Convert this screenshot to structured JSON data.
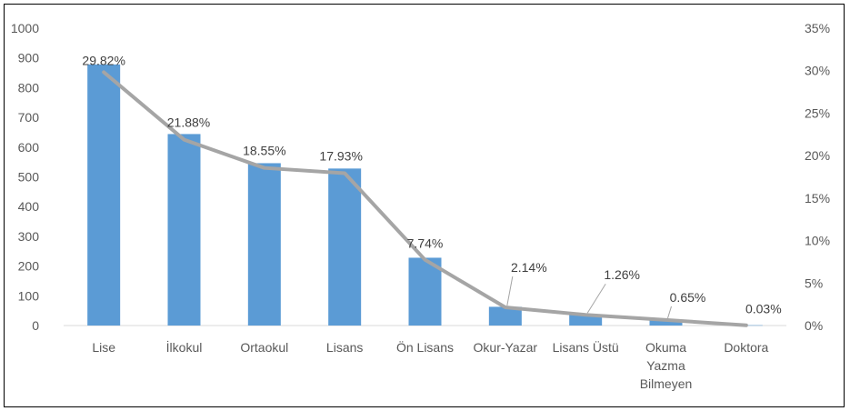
{
  "chart_data": {
    "type": "bar",
    "categories": [
      "Lise",
      "İlkokul",
      "Ortaokul",
      "Lisans",
      "Ön Lisans",
      "Okur-Yazar",
      "Lisans Üstü",
      "Okuma Yazma Bilmeyen",
      "Doktora"
    ],
    "category_lines": [
      [
        "Lise"
      ],
      [
        "İlkokul"
      ],
      [
        "Ortaokul"
      ],
      [
        "Lisans"
      ],
      [
        "Ön Lisans"
      ],
      [
        "Okur-Yazar"
      ],
      [
        "Lisans Üstü"
      ],
      [
        "Okuma",
        "Yazma",
        "Bilmeyen"
      ],
      [
        "Doktora"
      ]
    ],
    "series": [
      {
        "type": "bar",
        "axis": "left",
        "values": [
          878,
          644,
          546,
          528,
          228,
          63,
          37,
          19,
          1
        ]
      },
      {
        "type": "line",
        "axis": "right",
        "values": [
          29.82,
          21.88,
          18.55,
          17.93,
          7.74,
          2.14,
          1.26,
          0.65,
          0.03
        ]
      }
    ],
    "data_labels": [
      "29.82%",
      "21.88%",
      "18.55%",
      "17.93%",
      "7.74%",
      "2.14%",
      "1.26%",
      "0.65%",
      "0.03%"
    ],
    "y_left": {
      "lim": [
        0,
        1000
      ],
      "ticks": [
        "0",
        "100",
        "200",
        "300",
        "400",
        "500",
        "600",
        "700",
        "800",
        "900",
        "1000"
      ]
    },
    "y_right": {
      "lim": [
        0,
        35
      ],
      "ticks": [
        "0%",
        "5%",
        "10%",
        "15%",
        "20%",
        "25%",
        "30%",
        "35%"
      ]
    },
    "grid": false,
    "legend": "none",
    "title": "",
    "xlabel": "",
    "ylabel": ""
  },
  "colors": {
    "bar": "#5b9bd5",
    "line": "#a5a5a5",
    "tick_text": "#595959",
    "label_text": "#404040",
    "leader": "#a5a5a5"
  }
}
